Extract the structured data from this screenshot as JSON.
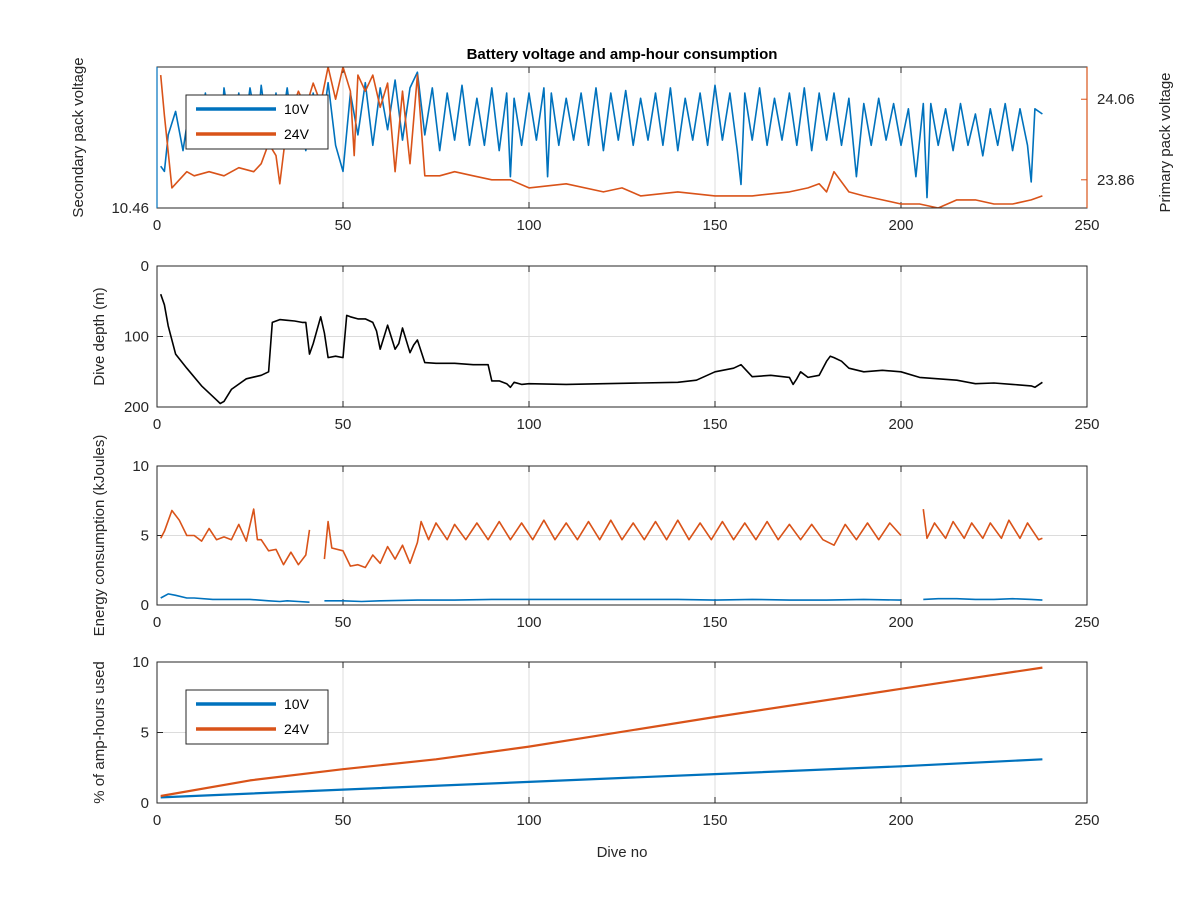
{
  "chart_data": [
    {
      "type": "line",
      "title": "Battery voltage and amp-hour consumption",
      "xlabel": "",
      "ylabel": "Secondary pack voltage",
      "ylabel_right": "Primary pack voltage",
      "xlim": [
        0,
        250
      ],
      "x_ticks": [
        "0",
        "50",
        "100",
        "150",
        "200",
        "250"
      ],
      "y_ticks": [
        "10.46"
      ],
      "y_ticks_right": [
        "23.86",
        "24.06"
      ],
      "ylim": [
        10.46,
        11.0
      ],
      "ylim_right": [
        23.79,
        24.14
      ],
      "grid": true,
      "legend": [
        "10V",
        "24V"
      ],
      "legend_position": "top-left",
      "series": [
        {
          "name": "10V",
          "axis": "left",
          "color": "#0072BD",
          "x": [
            1,
            2,
            3,
            5,
            7,
            9,
            11,
            13,
            14,
            15,
            17,
            18,
            20,
            22,
            23,
            25,
            27,
            28,
            30,
            32,
            33,
            35,
            37,
            38,
            40,
            42,
            44,
            46,
            48,
            50,
            52,
            54,
            56,
            58,
            60,
            62,
            64,
            66,
            68,
            70,
            72,
            74,
            76,
            78,
            80,
            82,
            84,
            86,
            88,
            90,
            92,
            94,
            95,
            96,
            98,
            100,
            102,
            104,
            105,
            106,
            108,
            110,
            112,
            114,
            116,
            118,
            120,
            122,
            124,
            126,
            128,
            130,
            132,
            134,
            136,
            138,
            140,
            142,
            144,
            146,
            148,
            150,
            152,
            154,
            156,
            157,
            158,
            160,
            162,
            164,
            166,
            168,
            170,
            172,
            174,
            176,
            178,
            180,
            182,
            184,
            186,
            188,
            190,
            192,
            194,
            196,
            198,
            200,
            202,
            204,
            206,
            207,
            208,
            210,
            212,
            214,
            216,
            218,
            220,
            222,
            224,
            226,
            228,
            230,
            232,
            234,
            235,
            236,
            238
          ],
          "y": [
            10.62,
            10.6,
            10.74,
            10.83,
            10.68,
            10.87,
            10.7,
            10.9,
            10.72,
            10.88,
            10.7,
            10.92,
            10.74,
            10.9,
            10.7,
            10.92,
            10.76,
            10.93,
            10.72,
            10.9,
            10.74,
            10.92,
            10.7,
            10.88,
            10.68,
            10.9,
            10.72,
            10.94,
            10.7,
            10.6,
            10.9,
            10.74,
            10.94,
            10.7,
            10.92,
            10.76,
            10.95,
            10.72,
            10.92,
            10.98,
            10.74,
            10.92,
            10.68,
            10.9,
            10.72,
            10.93,
            10.7,
            10.88,
            10.7,
            10.92,
            10.68,
            10.9,
            10.58,
            10.88,
            10.7,
            10.9,
            10.72,
            10.92,
            10.58,
            10.9,
            10.7,
            10.88,
            10.72,
            10.9,
            10.7,
            10.92,
            10.68,
            10.9,
            10.72,
            10.91,
            10.7,
            10.88,
            10.72,
            10.9,
            10.7,
            10.92,
            10.68,
            10.88,
            10.72,
            10.9,
            10.7,
            10.93,
            10.72,
            10.9,
            10.68,
            10.55,
            10.9,
            10.72,
            10.92,
            10.7,
            10.88,
            10.72,
            10.9,
            10.7,
            10.92,
            10.68,
            10.9,
            10.72,
            10.9,
            10.7,
            10.88,
            10.58,
            10.86,
            10.7,
            10.88,
            10.72,
            10.86,
            10.7,
            10.84,
            10.58,
            10.86,
            10.5,
            10.86,
            10.7,
            10.84,
            10.68,
            10.86,
            10.7,
            10.82,
            10.66,
            10.84,
            10.7,
            10.86,
            10.68,
            10.84,
            10.7,
            10.56,
            10.84,
            10.82
          ]
        },
        {
          "name": "24V",
          "axis": "right",
          "color": "#D95319",
          "x": [
            1,
            2,
            4,
            6,
            8,
            10,
            14,
            18,
            22,
            26,
            28,
            30,
            32,
            33,
            35,
            38,
            40,
            42,
            44,
            46,
            48,
            50,
            52,
            53,
            54,
            56,
            58,
            60,
            62,
            64,
            66,
            68,
            70,
            72,
            76,
            80,
            85,
            90,
            95,
            100,
            110,
            120,
            125,
            130,
            140,
            150,
            160,
            170,
            175,
            178,
            180,
            182,
            186,
            190,
            195,
            200,
            205,
            210,
            215,
            220,
            225,
            230,
            235,
            238
          ],
          "y": [
            24.12,
            24.02,
            23.84,
            23.86,
            23.88,
            23.87,
            23.88,
            23.87,
            23.89,
            23.88,
            23.9,
            23.95,
            23.92,
            23.85,
            24.0,
            24.08,
            24.04,
            24.1,
            24.05,
            24.14,
            24.06,
            24.14,
            24.08,
            23.92,
            24.12,
            24.08,
            24.12,
            24.04,
            24.1,
            23.88,
            24.08,
            23.9,
            24.12,
            23.87,
            23.87,
            23.88,
            23.87,
            23.86,
            23.86,
            23.84,
            23.85,
            23.83,
            23.84,
            23.82,
            23.83,
            23.82,
            23.82,
            23.83,
            23.84,
            23.85,
            23.83,
            23.88,
            23.83,
            23.82,
            23.81,
            23.8,
            23.8,
            23.79,
            23.81,
            23.81,
            23.8,
            23.8,
            23.81,
            23.82
          ]
        }
      ]
    },
    {
      "type": "line",
      "title": "",
      "xlabel": "",
      "ylabel": "Dive depth (m)",
      "xlim": [
        0,
        250
      ],
      "ylim": [
        0,
        200
      ],
      "y_reversed": true,
      "x_ticks": [
        "0",
        "50",
        "100",
        "150",
        "200",
        "250"
      ],
      "y_ticks": [
        "0",
        "100",
        "200"
      ],
      "grid": true,
      "series": [
        {
          "color": "#000000",
          "x": [
            1,
            2,
            3,
            5,
            8,
            12,
            16,
            17,
            18,
            20,
            24,
            28,
            30,
            31,
            33,
            35,
            37,
            39,
            40,
            41,
            42,
            44,
            45,
            46,
            48,
            50,
            51,
            52,
            54,
            56,
            58,
            59,
            60,
            62,
            64,
            65,
            66,
            68,
            69,
            70,
            72,
            75,
            80,
            85,
            89,
            90,
            92,
            94,
            95,
            96,
            98,
            100,
            110,
            120,
            130,
            140,
            145,
            150,
            155,
            157,
            160,
            165,
            170,
            171,
            172,
            173,
            175,
            178,
            180,
            181,
            182,
            184,
            186,
            190,
            195,
            200,
            205,
            210,
            215,
            220,
            225,
            230,
            235,
            236,
            238
          ],
          "y": [
            40,
            55,
            85,
            125,
            145,
            170,
            190,
            195,
            192,
            175,
            160,
            155,
            150,
            80,
            76,
            77,
            78,
            80,
            80,
            125,
            110,
            72,
            95,
            130,
            128,
            130,
            70,
            72,
            75,
            75,
            80,
            92,
            118,
            84,
            118,
            110,
            88,
            123,
            112,
            105,
            137,
            138,
            138,
            140,
            140,
            163,
            163,
            167,
            172,
            165,
            168,
            167,
            168,
            167,
            166,
            165,
            162,
            150,
            145,
            140,
            157,
            155,
            158,
            168,
            160,
            150,
            158,
            155,
            135,
            128,
            130,
            135,
            145,
            150,
            148,
            150,
            158,
            160,
            162,
            167,
            166,
            168,
            170,
            172,
            165
          ]
        }
      ]
    },
    {
      "type": "line",
      "title": "",
      "xlabel": "",
      "ylabel": "Energy consumption (kJoules)",
      "xlim": [
        0,
        250
      ],
      "ylim": [
        0,
        10
      ],
      "x_ticks": [
        "0",
        "50",
        "100",
        "150",
        "200",
        "250"
      ],
      "y_ticks": [
        "0",
        "5",
        "10"
      ],
      "grid": true,
      "series": [
        {
          "name": "10V",
          "color": "#0072BD",
          "segments": [
            {
              "x": [
                1,
                3,
                5,
                8,
                10,
                15,
                20,
                25,
                30,
                33,
                35,
                38,
                41
              ],
              "y": [
                0.5,
                0.8,
                0.7,
                0.5,
                0.5,
                0.4,
                0.4,
                0.4,
                0.3,
                0.25,
                0.3,
                0.25,
                0.2
              ]
            },
            {
              "x": [
                45,
                50,
                55,
                60,
                70,
                80,
                90,
                100,
                110,
                120,
                130,
                140,
                150,
                160,
                170,
                180,
                190,
                200
              ],
              "y": [
                0.3,
                0.3,
                0.25,
                0.3,
                0.35,
                0.35,
                0.4,
                0.4,
                0.4,
                0.4,
                0.4,
                0.4,
                0.35,
                0.4,
                0.35,
                0.35,
                0.4,
                0.35
              ]
            },
            {
              "x": [
                206,
                210,
                215,
                220,
                225,
                230,
                235,
                238
              ],
              "y": [
                0.4,
                0.45,
                0.45,
                0.4,
                0.4,
                0.45,
                0.4,
                0.35
              ]
            }
          ]
        },
        {
          "name": "24V",
          "color": "#D95319",
          "segments": [
            {
              "x": [
                1,
                2,
                4,
                6,
                8,
                10,
                12,
                14,
                16,
                18,
                20,
                22,
                24,
                26,
                27,
                28,
                30,
                32,
                34,
                36,
                38,
                40,
                41
              ],
              "y": [
                4.8,
                5.3,
                6.8,
                6.1,
                5.0,
                5.0,
                4.6,
                5.5,
                4.7,
                4.9,
                4.7,
                5.8,
                4.6,
                6.9,
                4.7,
                4.7,
                3.9,
                4.0,
                2.9,
                3.8,
                2.9,
                3.6,
                5.4
              ]
            },
            {
              "x": [
                45,
                46,
                47,
                50,
                52,
                54,
                56,
                58,
                60,
                62,
                64,
                66,
                68,
                70,
                71,
                73,
                75,
                78,
                80,
                83,
                86,
                89,
                92,
                95,
                98,
                101,
                104,
                107,
                110,
                113,
                116,
                119,
                122,
                125,
                128,
                131,
                134,
                137,
                140,
                143,
                146,
                149,
                152,
                155,
                158,
                161,
                164,
                167,
                170,
                173,
                176,
                179,
                182,
                185,
                188,
                191,
                194,
                197,
                200
              ],
              "y": [
                3.3,
                6.0,
                4.1,
                3.9,
                2.8,
                2.9,
                2.7,
                3.6,
                3.0,
                4.2,
                3.3,
                4.3,
                3.0,
                4.5,
                6.0,
                4.7,
                5.9,
                4.7,
                5.8,
                4.7,
                5.9,
                4.7,
                6.0,
                4.7,
                5.9,
                4.7,
                6.1,
                4.7,
                5.9,
                4.7,
                6.0,
                4.7,
                6.1,
                4.7,
                5.9,
                4.7,
                6.0,
                4.7,
                6.1,
                4.7,
                5.9,
                4.7,
                6.0,
                4.7,
                5.9,
                4.7,
                6.0,
                4.7,
                5.8,
                4.7,
                5.8,
                4.7,
                4.3,
                5.8,
                4.7,
                5.9,
                4.7,
                5.9,
                5.0
              ]
            },
            {
              "x": [
                206,
                207,
                209,
                212,
                214,
                217,
                219,
                222,
                224,
                227,
                229,
                232,
                234,
                237,
                238
              ],
              "y": [
                6.9,
                4.8,
                5.9,
                4.8,
                6.0,
                4.8,
                5.9,
                4.8,
                5.9,
                4.8,
                6.1,
                4.8,
                5.9,
                4.7,
                4.8
              ]
            }
          ]
        }
      ]
    },
    {
      "type": "line",
      "title": "",
      "xlabel": "Dive no",
      "ylabel": "% of amp-hours used",
      "xlim": [
        0,
        250
      ],
      "ylim": [
        0,
        10
      ],
      "x_ticks": [
        "0",
        "50",
        "100",
        "150",
        "200",
        "250"
      ],
      "y_ticks": [
        "0",
        "5",
        "10"
      ],
      "grid": true,
      "legend": [
        "10V",
        "24V"
      ],
      "legend_position": "top-left",
      "series": [
        {
          "name": "10V",
          "color": "#0072BD",
          "x": [
            1,
            50,
            100,
            150,
            200,
            238
          ],
          "y": [
            0.4,
            0.95,
            1.5,
            2.05,
            2.6,
            3.1
          ]
        },
        {
          "name": "24V",
          "color": "#D95319",
          "x": [
            1,
            25,
            50,
            75,
            100,
            150,
            200,
            238
          ],
          "y": [
            0.5,
            1.6,
            2.4,
            3.1,
            4.0,
            6.1,
            8.1,
            9.6
          ]
        }
      ]
    }
  ]
}
